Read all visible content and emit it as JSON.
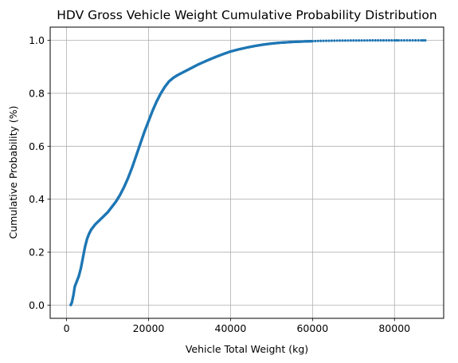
{
  "chart_data": {
    "type": "scatter",
    "title": "HDV Gross Vehicle Weight Cumulative Probability Distribution",
    "xlabel": "Vehicle Total Weight (kg)",
    "ylabel": "Cumulative Probability (%)",
    "xlim": [
      -4000,
      92000
    ],
    "ylim": [
      -0.05,
      1.05
    ],
    "x_ticks": [
      0,
      20000,
      40000,
      60000,
      80000
    ],
    "y_ticks": [
      0.0,
      0.2,
      0.4,
      0.6,
      0.8,
      1.0
    ],
    "x_tick_labels": [
      "0",
      "20000",
      "40000",
      "60000",
      "80000"
    ],
    "y_tick_labels": [
      "0.0",
      "0.2",
      "0.4",
      "0.6",
      "0.8",
      "1.0"
    ],
    "grid": true,
    "marker_color": "#1f77b4",
    "series": [
      {
        "x": [
          1000,
          1300,
          1700,
          2000,
          2500,
          3000,
          3500,
          4000,
          4500,
          5000,
          5500,
          6000,
          6500,
          7000,
          8000,
          9000,
          10000,
          11000,
          12000,
          13000,
          14000,
          15000,
          16000,
          17000,
          18000,
          19000,
          20000,
          21000,
          22000,
          23000,
          24000,
          25000,
          26000,
          27000,
          28000,
          29000,
          30000,
          32000,
          34000,
          36000,
          38000,
          40000,
          42000,
          44000,
          46000,
          48000,
          50000,
          52000,
          55000,
          58000,
          60000,
          62000,
          64000,
          66000,
          68000,
          70000,
          72000,
          74000,
          76000,
          80000,
          81000,
          86500,
          87500
        ],
        "y": [
          0.0,
          0.01,
          0.04,
          0.07,
          0.09,
          0.11,
          0.14,
          0.18,
          0.22,
          0.25,
          0.27,
          0.285,
          0.295,
          0.305,
          0.32,
          0.335,
          0.35,
          0.37,
          0.39,
          0.415,
          0.445,
          0.48,
          0.52,
          0.565,
          0.61,
          0.655,
          0.695,
          0.735,
          0.77,
          0.8,
          0.825,
          0.845,
          0.858,
          0.868,
          0.876,
          0.884,
          0.892,
          0.908,
          0.922,
          0.935,
          0.947,
          0.958,
          0.966,
          0.973,
          0.979,
          0.984,
          0.988,
          0.991,
          0.994,
          0.996,
          0.997,
          0.998,
          0.9985,
          0.999,
          0.9993,
          0.9995,
          0.9997,
          0.9998,
          0.9999,
          0.99995,
          1.0,
          1.0,
          1.0
        ]
      }
    ]
  }
}
